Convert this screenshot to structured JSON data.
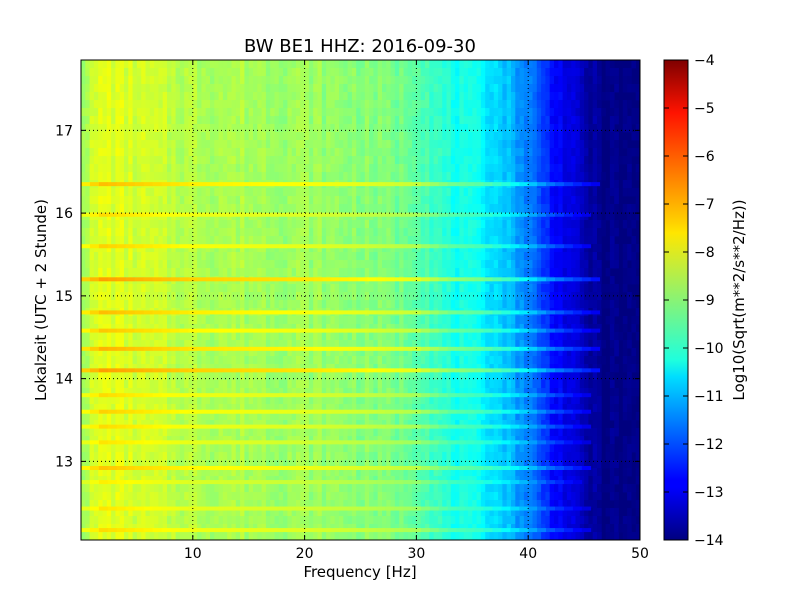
{
  "chart_data": {
    "type": "heatmap",
    "title": "BW BE1 HHZ: 2016-09-30",
    "xlabel": "Frequency [Hz]",
    "ylabel": "Lokalzeit (UTC + 2 Stunde)",
    "colorbar_label": "Log10(Sqrt(m**2/s**2/Hz))",
    "xlim": [
      0,
      50
    ],
    "ylim": [
      17.85,
      12.05
    ],
    "xticks": [
      10,
      20,
      30,
      40,
      50
    ],
    "yticks": [
      13,
      14,
      15,
      16,
      17
    ],
    "colorbar_range": [
      -14,
      -4
    ],
    "colorbar_ticks": [
      -4,
      -5,
      -6,
      -7,
      -8,
      -9,
      -10,
      -11,
      -12,
      -13,
      -14
    ],
    "colormap": "jet",
    "grid": true,
    "frequency_profile": [
      {
        "x": 0,
        "value": -8.6
      },
      {
        "x": 2,
        "value": -8.0
      },
      {
        "x": 5,
        "value": -8.2
      },
      {
        "x": 10,
        "value": -8.5
      },
      {
        "x": 15,
        "value": -8.6
      },
      {
        "x": 20,
        "value": -8.7
      },
      {
        "x": 25,
        "value": -8.9
      },
      {
        "x": 30,
        "value": -9.2
      },
      {
        "x": 33,
        "value": -10.0
      },
      {
        "x": 36,
        "value": -10.3
      },
      {
        "x": 38,
        "value": -10.8
      },
      {
        "x": 40,
        "value": -11.5
      },
      {
        "x": 42,
        "value": -12.5
      },
      {
        "x": 44,
        "value": -13.2
      },
      {
        "x": 46,
        "value": -13.8
      },
      {
        "x": 48,
        "value": -14.0
      },
      {
        "x": 50,
        "value": -14.0
      }
    ],
    "bands": [
      {
        "time": 12.17,
        "boost": 0.6,
        "fmax": 45
      },
      {
        "time": 12.43,
        "boost": 0.5,
        "fmax": 45
      },
      {
        "time": 12.75,
        "boost": 0.4,
        "fmax": 44
      },
      {
        "time": 12.92,
        "boost": 0.8,
        "fmax": 45
      },
      {
        "time": 13.23,
        "boost": 0.5,
        "fmax": 45
      },
      {
        "time": 13.42,
        "boost": 0.6,
        "fmax": 45
      },
      {
        "time": 13.6,
        "boost": 0.7,
        "fmax": 45
      },
      {
        "time": 13.8,
        "boost": 0.6,
        "fmax": 45
      },
      {
        "time": 14.1,
        "boost": 1.2,
        "fmax": 46
      },
      {
        "time": 14.36,
        "boost": 1.0,
        "fmax": 46
      },
      {
        "time": 14.58,
        "boost": 0.8,
        "fmax": 46
      },
      {
        "time": 14.8,
        "boost": 0.9,
        "fmax": 46
      },
      {
        "time": 15.2,
        "boost": 1.2,
        "fmax": 46
      },
      {
        "time": 15.6,
        "boost": 0.7,
        "fmax": 45
      },
      {
        "time": 15.98,
        "boost": 0.6,
        "fmax": 45
      },
      {
        "time": 16.35,
        "boost": 0.9,
        "fmax": 46
      }
    ]
  }
}
